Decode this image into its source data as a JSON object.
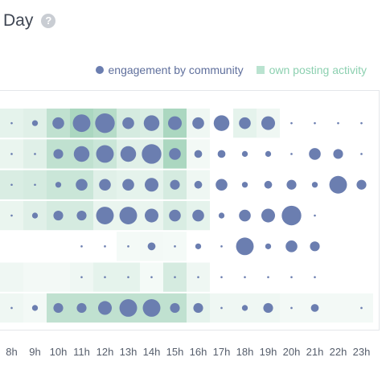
{
  "header": {
    "title": "Day",
    "help_icon": "question-circle-icon",
    "help_glyph": "?"
  },
  "legend": {
    "dot_label": "engagement by community",
    "square_label": "own posting activity"
  },
  "colors": {
    "dot": "#6b7eb0",
    "square": "#2d9b62",
    "legend_square_text": "#8cd0b0",
    "legend_dot_text": "#5f6f9c"
  },
  "chart_data": {
    "type": "heatmap",
    "title": "Day",
    "legend_position": "top-right",
    "x": [
      "8h",
      "9h",
      "10h",
      "11h",
      "12h",
      "13h",
      "14h",
      "15h",
      "16h",
      "17h",
      "18h",
      "19h",
      "20h",
      "21h",
      "22h",
      "23h"
    ],
    "x_tick_labels": [
      "8h",
      "9h",
      "10h",
      "11h",
      "12h",
      "13h",
      "14h",
      "15h",
      "16h",
      "17h",
      "18h",
      "19h",
      "20h",
      "21h",
      "22h",
      "23h"
    ],
    "rows": 7,
    "series": [
      {
        "name": "engagement by community",
        "encoding": "circle size",
        "values": [
          [
            1,
            2,
            5,
            8,
            9,
            5,
            7,
            6,
            5,
            7,
            5,
            6,
            1,
            1,
            1,
            1
          ],
          [
            1,
            1,
            4,
            7,
            8,
            7,
            9,
            5,
            3,
            3,
            2,
            2,
            1,
            5,
            4,
            1
          ],
          [
            1,
            1,
            2,
            5,
            5,
            5,
            6,
            4,
            3,
            5,
            2,
            3,
            4,
            2,
            8,
            4
          ],
          [
            1,
            2,
            4,
            4,
            8,
            8,
            6,
            5,
            5,
            2,
            5,
            6,
            9,
            1,
            0,
            0
          ],
          [
            0,
            0,
            0,
            1,
            1,
            1,
            3,
            1,
            2,
            1,
            8,
            2,
            5,
            4,
            0,
            0
          ],
          [
            0,
            0,
            0,
            1,
            1,
            1,
            1,
            1,
            1,
            1,
            1,
            1,
            1,
            1,
            0,
            0
          ],
          [
            1,
            2,
            4,
            4,
            6,
            8,
            8,
            4,
            4,
            1,
            2,
            4,
            1,
            3,
            0,
            1
          ]
        ]
      },
      {
        "name": "own posting activity",
        "encoding": "square shade",
        "values": [
          [
            0.12,
            0.15,
            0.3,
            0.4,
            0.35,
            0.2,
            0.18,
            0.4,
            0.08,
            0,
            0.12,
            0.08,
            0,
            0,
            0,
            0
          ],
          [
            0.1,
            0.15,
            0.3,
            0.3,
            0.25,
            0.15,
            0.15,
            0.4,
            0.06,
            0,
            0,
            0,
            0,
            0,
            0,
            0
          ],
          [
            0.18,
            0.2,
            0.25,
            0.25,
            0.15,
            0.12,
            0.12,
            0.2,
            0.08,
            0,
            0,
            0,
            0,
            0,
            0,
            0
          ],
          [
            0.1,
            0.15,
            0.2,
            0.2,
            0.1,
            0.1,
            0.1,
            0.18,
            0.12,
            0,
            0,
            0,
            0,
            0,
            0,
            0
          ],
          [
            0,
            0,
            0,
            0,
            0,
            0.05,
            0.06,
            0.05,
            0,
            0,
            0,
            0,
            0,
            0,
            0,
            0
          ],
          [
            0.08,
            0.06,
            0.06,
            0.08,
            0.12,
            0.12,
            0.05,
            0.2,
            0.08,
            0,
            0,
            0,
            0,
            0,
            0,
            0
          ],
          [
            0.08,
            0.06,
            0.3,
            0.3,
            0.3,
            0.3,
            0.3,
            0.3,
            0.12,
            0.08,
            0.08,
            0.08,
            0.06,
            0.06,
            0.06,
            0.06
          ]
        ]
      }
    ]
  }
}
